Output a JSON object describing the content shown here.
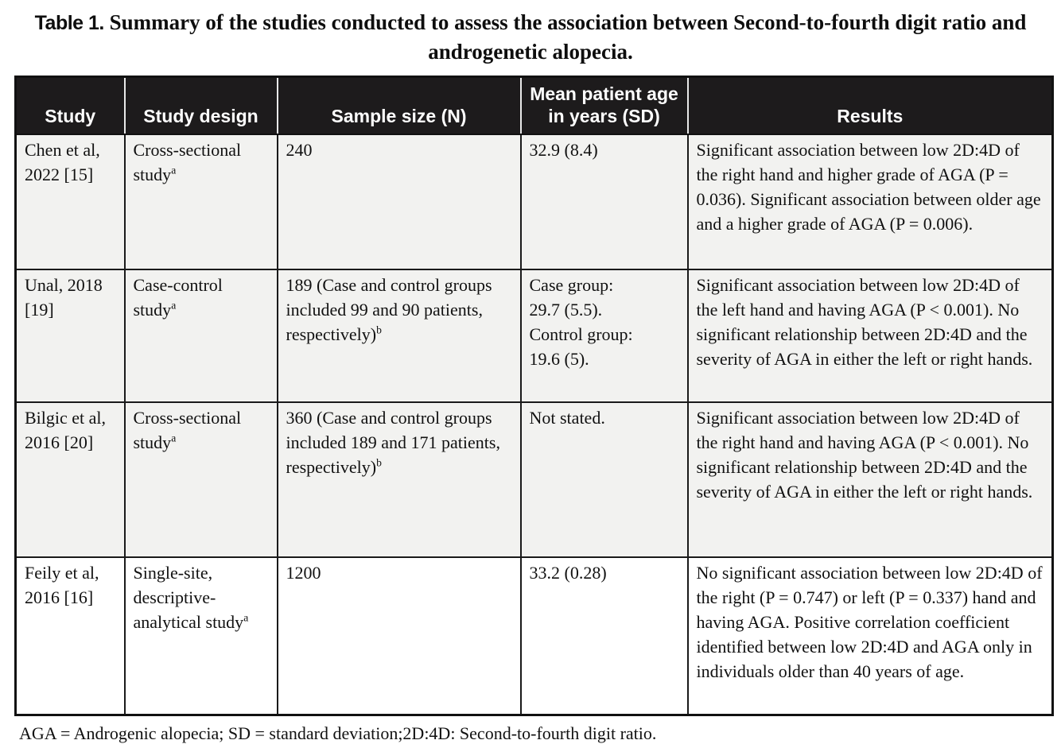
{
  "caption": {
    "label": "Table 1.",
    "text": "Summary of the studies conducted to assess the association between Second-to-fourth digit ratio and androgenetic alopecia."
  },
  "table": {
    "headers": {
      "study": "Study",
      "design": "Study design",
      "sample": "Sample size (N)",
      "age": "Mean patient age in years (SD)",
      "results": "Results"
    },
    "rows": [
      {
        "study": "Chen et al, 2022 [15]",
        "design": "Cross-sectional study",
        "design_sup": "a",
        "sample": "240",
        "sample_sup": "",
        "age": "32.9 (8.4)",
        "results": "Significant association between low 2D:4D of the right hand and higher grade of AGA (P = 0.036). Significant association between older age and a higher grade of AGA (P = 0.006)."
      },
      {
        "study": "Unal, 2018 [19]",
        "design": "Case-control study",
        "design_sup": "a",
        "sample": "189 (Case and control groups included 99 and 90 patients, respectively)",
        "sample_sup": "b",
        "age": "Case group:\n29.7 (5.5).\nControl group:\n19.6 (5).",
        "results": "Significant association between low 2D:4D of the left hand and having AGA (P < 0.001). No significant relationship between 2D:4D and the severity of AGA in either the left or right hands."
      },
      {
        "study": "Bilgic et al, 2016 [20]",
        "design": "Cross-sectional study",
        "design_sup": "a",
        "sample": "360 (Case and control groups included 189 and 171 patients, respectively)",
        "sample_sup": "b",
        "age": "Not stated.",
        "results": "Significant association between low 2D:4D of the right hand and having AGA (P < 0.001). No significant relationship between 2D:4D and the severity of AGA in either the left or right hands."
      },
      {
        "study": "Feily et al, 2016 [16]",
        "design": "Single-site, descriptive-analytical study",
        "design_sup": "a",
        "sample": "1200",
        "sample_sup": "",
        "age": "33.2 (0.28)",
        "results": "No significant association between low 2D:4D of the right (P = 0.747) or left (P = 0.337) hand and having AGA. Positive correlation coefficient identified between low 2D:4D and AGA only in individuals older than 40 years of age."
      }
    ],
    "footnote": "AGA = Androgenic alopecia; SD = standard deviation;2D:4D: Second-to-fourth digit ratio."
  }
}
